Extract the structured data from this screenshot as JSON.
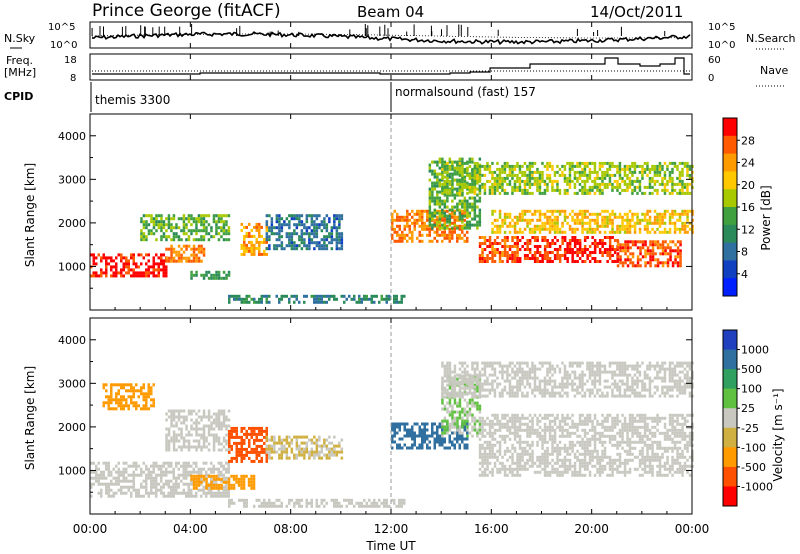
{
  "header": {
    "radar": "Prince George (fitACF)",
    "beam": "Beam 04",
    "date": "14/Oct/2011"
  },
  "noise_panel": {
    "left_label": "N.Sky",
    "right_label": "N.Search",
    "ticks_left": [
      "10^5",
      "10^0"
    ],
    "ticks_right": [
      "10^5",
      "10^0"
    ]
  },
  "freq_panel": {
    "left_label_1": "Freq.",
    "left_label_2": "[MHz]",
    "right_label": "Nave",
    "ticks_left": [
      "18",
      "8"
    ],
    "ticks_right": [
      "60",
      "0"
    ]
  },
  "cpid": {
    "label": "CPID",
    "modes": [
      {
        "name": "themis 3300",
        "start": "00:00"
      },
      {
        "name": "normalsound (fast) 157",
        "start": "12:00"
      }
    ]
  },
  "power_colorbar": {
    "label": "Power [dB]",
    "ticks": [
      "28",
      "24",
      "20",
      "16",
      "12",
      "8",
      "4"
    ],
    "colors": [
      "#ff0000",
      "#ff5a00",
      "#ff9a00",
      "#ffc800",
      "#a8c800",
      "#40a040",
      "#2a8a5a",
      "#3070a0",
      "#1040c0",
      "#0020ff"
    ]
  },
  "velocity_colorbar": {
    "label": "Velocity [m s⁻¹]",
    "ticks": [
      "1000",
      "500",
      "100",
      "25",
      "-25",
      "-100",
      "-500",
      "-1000"
    ],
    "colors": [
      "#2040c0",
      "#3070a0",
      "#30a060",
      "#60c040",
      "#c8c8c0",
      "#d0b040",
      "#ff9a00",
      "#ff5000",
      "#ff0000"
    ]
  },
  "axes": {
    "ylabel": "Slant Range [km]",
    "yticks": [
      "1000",
      "2000",
      "3000",
      "4000"
    ],
    "xticks": [
      "00:00",
      "04:00",
      "08:00",
      "12:00",
      "16:00",
      "20:00",
      "00:00"
    ],
    "xlabel": "Time UT"
  },
  "chart_data": [
    {
      "type": "heatmap",
      "panel": "power",
      "x_range_hours": [
        0,
        24
      ],
      "y_range_km": [
        0,
        4500
      ],
      "colorbar_range_db": [
        0,
        30
      ],
      "regions": [
        {
          "t": [
            0.0,
            3.0
          ],
          "r": [
            800,
            1300
          ],
          "v": 28
        },
        {
          "t": [
            3.0,
            4.5
          ],
          "r": [
            1100,
            1500
          ],
          "v": 24
        },
        {
          "t": [
            2.0,
            5.5
          ],
          "r": [
            1600,
            2200
          ],
          "v": 14
        },
        {
          "t": [
            4.0,
            5.5
          ],
          "r": [
            700,
            900
          ],
          "v": 12
        },
        {
          "t": [
            6.0,
            7.0
          ],
          "r": [
            1300,
            2000
          ],
          "v": 22
        },
        {
          "t": [
            7.0,
            10.0
          ],
          "r": [
            1400,
            2200
          ],
          "v": 8
        },
        {
          "t": [
            5.5,
            12.5
          ],
          "r": [
            150,
            350
          ],
          "v": 10
        },
        {
          "t": [
            12.0,
            15.0
          ],
          "r": [
            1600,
            2300
          ],
          "v": 24
        },
        {
          "t": [
            13.5,
            15.5
          ],
          "r": [
            1900,
            3500
          ],
          "v": 14
        },
        {
          "t": [
            15.5,
            17.0
          ],
          "r": [
            1100,
            1700
          ],
          "v": 26
        },
        {
          "t": [
            17.0,
            21.0
          ],
          "r": [
            1100,
            1700
          ],
          "v": 28
        },
        {
          "t": [
            21.0,
            23.5
          ],
          "r": [
            1000,
            1600
          ],
          "v": 26
        },
        {
          "t": [
            16.0,
            24.0
          ],
          "r": [
            1800,
            2300
          ],
          "v": 20
        },
        {
          "t": [
            14.0,
            24.0
          ],
          "r": [
            2700,
            3400
          ],
          "v": 16
        }
      ]
    },
    {
      "type": "heatmap",
      "panel": "velocity",
      "x_range_hours": [
        0,
        24
      ],
      "y_range_km": [
        0,
        4500
      ],
      "colorbar_range_ms": [
        -1000,
        1000
      ],
      "regions": [
        {
          "t": [
            0.0,
            5.5
          ],
          "r": [
            400,
            1200
          ],
          "v": 0
        },
        {
          "t": [
            3.0,
            5.5
          ],
          "r": [
            1500,
            2400
          ],
          "v": 0
        },
        {
          "t": [
            5.5,
            7.0
          ],
          "r": [
            1200,
            2000
          ],
          "v": -500
        },
        {
          "t": [
            7.0,
            10.0
          ],
          "r": [
            1300,
            1800
          ],
          "v": -25
        },
        {
          "t": [
            4.0,
            6.5
          ],
          "r": [
            600,
            900
          ],
          "v": -100
        },
        {
          "t": [
            5.5,
            12.5
          ],
          "r": [
            150,
            350
          ],
          "v": 0
        },
        {
          "t": [
            12.0,
            15.0
          ],
          "r": [
            1500,
            2100
          ],
          "v": 500
        },
        {
          "t": [
            14.0,
            15.5
          ],
          "r": [
            1800,
            3200
          ],
          "v": 25
        },
        {
          "t": [
            15.5,
            24.0
          ],
          "r": [
            900,
            2300
          ],
          "v": 0
        },
        {
          "t": [
            14.0,
            24.0
          ],
          "r": [
            2700,
            3500
          ],
          "v": 0
        },
        {
          "t": [
            0.5,
            2.5
          ],
          "r": [
            2400,
            3000
          ],
          "v": -100
        }
      ]
    }
  ]
}
